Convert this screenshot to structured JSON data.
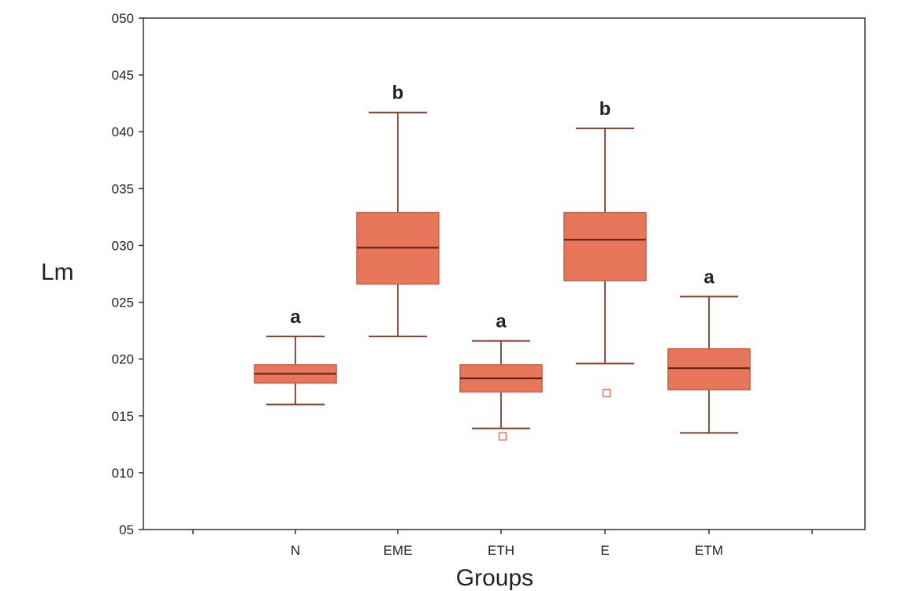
{
  "chart_data": {
    "type": "box",
    "xlabel": "Groups",
    "ylabel": "Lm",
    "ylim": [
      5,
      50
    ],
    "yticks": [
      {
        "value": 5,
        "label": "05"
      },
      {
        "value": 10,
        "label": "010"
      },
      {
        "value": 15,
        "label": "015"
      },
      {
        "value": 20,
        "label": "020"
      },
      {
        "value": 25,
        "label": "025"
      },
      {
        "value": 30,
        "label": "030"
      },
      {
        "value": 35,
        "label": "035"
      },
      {
        "value": 40,
        "label": "040"
      },
      {
        "value": 45,
        "label": "045"
      },
      {
        "value": 50,
        "label": "050"
      }
    ],
    "categories": [
      "N",
      "EME",
      "ETH",
      "E",
      "ETM"
    ],
    "boxes": [
      {
        "group": "N",
        "whisker_low": 16.0,
        "q1": 17.9,
        "median": 18.7,
        "q3": 19.5,
        "whisker_high": 22.0,
        "outliers": [],
        "letter": "a"
      },
      {
        "group": "EME",
        "whisker_low": 22.0,
        "q1": 26.6,
        "median": 29.8,
        "q3": 32.9,
        "whisker_high": 41.7,
        "outliers": [],
        "letter": "b"
      },
      {
        "group": "ETH",
        "whisker_low": 13.9,
        "q1": 17.1,
        "median": 18.3,
        "q3": 19.5,
        "whisker_high": 21.6,
        "outliers": [
          13.2
        ],
        "letter": "a"
      },
      {
        "group": "E",
        "whisker_low": 19.6,
        "q1": 26.9,
        "median": 30.5,
        "q3": 32.9,
        "whisker_high": 40.3,
        "outliers": [
          17.0
        ],
        "letter": "b"
      },
      {
        "group": "ETM",
        "whisker_low": 13.5,
        "q1": 17.3,
        "median": 19.2,
        "q3": 20.9,
        "whisker_high": 25.5,
        "outliers": [],
        "letter": "a"
      }
    ],
    "grid": false,
    "colors": {
      "box_fill": "#e8765a",
      "box_stroke": "#c8604a",
      "median": "#5a1f12",
      "whisker": "#8a3a2a",
      "outlier": "#e8765a",
      "frame": "#333333"
    }
  }
}
